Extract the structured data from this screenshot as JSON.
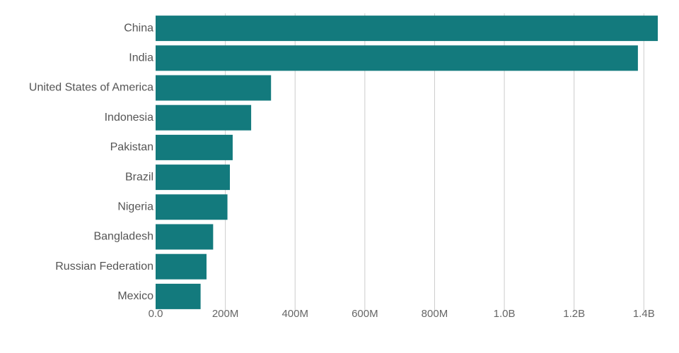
{
  "chart_data": {
    "type": "bar",
    "orientation": "horizontal",
    "title": "",
    "xlabel": "",
    "ylabel": "",
    "categories": [
      "China",
      "India",
      "United States of America",
      "Indonesia",
      "Pakistan",
      "Brazil",
      "Nigeria",
      "Bangladesh",
      "Russian Federation",
      "Mexico"
    ],
    "values": [
      1440000000,
      1383000000,
      331000000,
      274000000,
      221000000,
      213000000,
      206000000,
      165000000,
      146000000,
      129000000
    ],
    "xlim": [
      0,
      1440000000
    ],
    "x_ticks": [
      0,
      200000000,
      400000000,
      600000000,
      800000000,
      1000000000,
      1200000000,
      1400000000
    ],
    "x_tick_labels": [
      "0.0",
      "200M",
      "400M",
      "600M",
      "800M",
      "1.0B",
      "1.2B",
      "1.4B"
    ],
    "grid": "vertical",
    "legend": "none",
    "colors": {
      "bar": "#137a7d",
      "grid": "#cccccc",
      "label": "#555555"
    }
  }
}
